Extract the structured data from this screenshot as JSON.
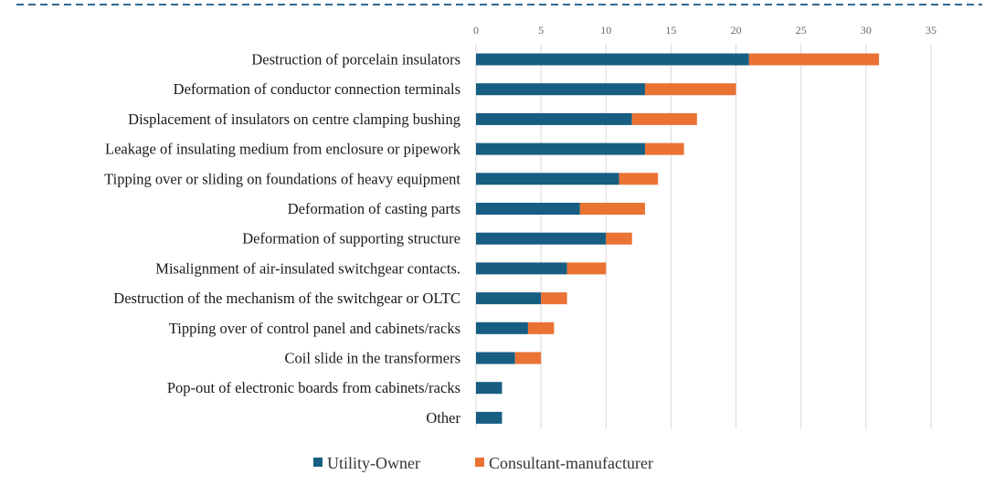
{
  "chart_data": {
    "type": "bar",
    "orientation": "horizontal",
    "stacked": true,
    "title": "",
    "xlabel": "",
    "ylabel": "",
    "xlim": [
      0,
      35
    ],
    "xticks": [
      0,
      5,
      10,
      15,
      20,
      25,
      30,
      35
    ],
    "grid": true,
    "legend_position": "bottom",
    "categories": [
      "Destruction of porcelain insulators",
      "Deformation of conductor connection terminals",
      "Displacement of insulators on centre clamping bushing",
      "Leakage of insulating medium from enclosure or pipework",
      "Tipping over or sliding on foundations of heavy equipment",
      "Deformation of casting parts",
      "Deformation of supporting structure",
      "Misalignment of air-insulated switchgear contacts.",
      "Destruction of the mechanism of the switchgear or OLTC",
      "Tipping over of control panel and cabinets/racks",
      "Coil slide in the transformers",
      "Pop-out of electronic boards from cabinets/racks",
      "Other"
    ],
    "series": [
      {
        "name": "Utility-Owner",
        "color": "#175e82",
        "values": [
          21,
          13,
          12,
          13,
          11,
          8,
          10,
          7,
          5,
          4,
          3,
          2,
          2
        ]
      },
      {
        "name": "Consultant-manufacturer",
        "color": "#ea7233",
        "values": [
          10,
          7,
          5,
          3,
          3,
          5,
          2,
          3,
          2,
          2,
          2,
          0,
          0
        ]
      }
    ]
  },
  "colors": {
    "divider": "#2f6a94",
    "grid": "#d9d9d9"
  }
}
